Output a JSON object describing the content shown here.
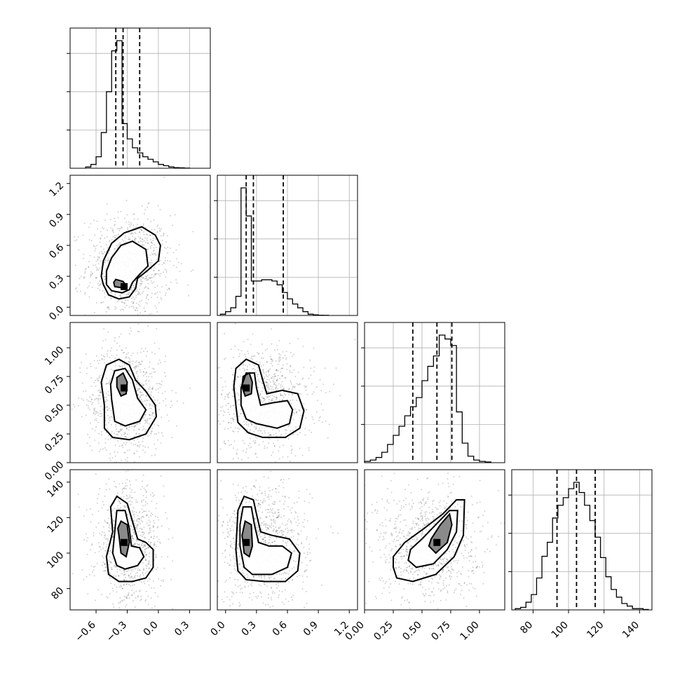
{
  "chart_data": {
    "type": "corner",
    "n_params": 4,
    "labels": [
      "",
      "",
      "",
      ""
    ],
    "ticks": [
      {
        "values": [
          -0.6,
          -0.3,
          0.0,
          0.3
        ],
        "labels": [
          "−0.6",
          "−0.3",
          "0.0",
          "0.3"
        ]
      },
      {
        "values": [
          0.0,
          0.3,
          0.6,
          0.9,
          1.2
        ],
        "labels": [
          "0.0",
          "0.3",
          "0.6",
          "0.9",
          "1.2"
        ]
      },
      {
        "values": [
          0.0,
          0.25,
          0.5,
          0.75,
          1.0
        ],
        "labels": [
          "0.00",
          "0.25",
          "0.50",
          "0.75",
          "1.00"
        ]
      },
      {
        "values": [
          80,
          100,
          120,
          140
        ],
        "labels": [
          "80",
          "100",
          "120",
          "140"
        ]
      }
    ],
    "ranges": [
      [
        -0.85,
        0.5
      ],
      [
        -0.08,
        1.28
      ],
      [
        0.0,
        1.22
      ],
      [
        68,
        147
      ]
    ],
    "marginals": [
      {
        "edges": [
          -0.7,
          -0.65,
          -0.6,
          -0.55,
          -0.5,
          -0.45,
          -0.4,
          -0.35,
          -0.3,
          -0.25,
          -0.2,
          -0.15,
          -0.1,
          -0.05,
          0.0,
          0.05,
          0.1,
          0.15,
          0.2,
          0.25,
          0.3
        ],
        "counts": [
          1,
          3,
          9,
          28,
          60,
          92,
          100,
          35,
          23,
          16,
          12,
          9,
          7,
          5,
          3,
          2,
          1,
          0.5,
          0.3,
          0.1
        ],
        "quantiles": [
          -0.41,
          -0.34,
          -0.18
        ]
      },
      {
        "edges": [
          -0.05,
          0.0,
          0.05,
          0.1,
          0.15,
          0.2,
          0.25,
          0.3,
          0.35,
          0.4,
          0.45,
          0.5,
          0.55,
          0.6,
          0.65,
          0.7,
          0.75,
          0.8,
          0.85,
          0.9,
          0.95,
          1.0
        ],
        "counts": [
          1,
          3,
          6,
          15,
          100,
          78,
          27,
          27,
          28,
          28,
          27,
          24,
          18,
          13,
          9,
          6,
          3,
          1,
          0.5,
          0.2,
          0.1
        ],
        "quantiles": [
          0.2,
          0.27,
          0.56
        ]
      },
      {
        "edges": [
          0.0,
          0.05,
          0.1,
          0.15,
          0.2,
          0.25,
          0.3,
          0.35,
          0.4,
          0.45,
          0.5,
          0.55,
          0.6,
          0.65,
          0.7,
          0.75,
          0.8,
          0.85,
          0.9,
          0.95,
          1.0,
          1.05,
          1.1
        ],
        "counts": [
          1,
          2,
          4,
          8,
          14,
          21,
          28,
          36,
          43,
          50,
          63,
          74,
          82,
          98,
          95,
          90,
          39,
          15,
          5,
          2,
          1,
          0.5
        ],
        "quantiles": [
          0.42,
          0.63,
          0.76
        ]
      },
      {
        "edges": [
          70,
          73,
          76,
          79,
          82,
          85,
          88,
          91,
          94,
          97,
          100,
          103,
          106,
          109,
          112,
          115,
          118,
          121,
          124,
          127,
          130,
          133,
          136,
          139,
          142,
          145
        ],
        "counts": [
          1,
          2,
          6,
          12,
          25,
          42,
          53,
          72,
          82,
          88,
          95,
          100,
          92,
          82,
          70,
          57,
          41,
          26,
          16,
          10,
          5,
          3,
          1,
          1,
          0.3
        ],
        "quantiles": [
          93.5,
          104.5,
          115
        ]
      }
    ],
    "pairs": [
      {
        "x": 0,
        "y": 1,
        "peak": [
          -0.33,
          0.2
        ],
        "contours": [
          [
            [
              -0.53,
              0.22
            ],
            [
              -0.48,
              0.12
            ],
            [
              -0.38,
              0.08
            ],
            [
              -0.28,
              0.1
            ],
            [
              -0.22,
              0.18
            ],
            [
              -0.2,
              0.28
            ],
            [
              -0.1,
              0.36
            ],
            [
              0.0,
              0.45
            ],
            [
              0.02,
              0.6
            ],
            [
              -0.03,
              0.7
            ],
            [
              -0.16,
              0.78
            ],
            [
              -0.33,
              0.72
            ],
            [
              -0.45,
              0.62
            ],
            [
              -0.53,
              0.45
            ],
            [
              -0.55,
              0.3
            ]
          ],
          [
            [
              -0.5,
              0.22
            ],
            [
              -0.45,
              0.16
            ],
            [
              -0.35,
              0.14
            ],
            [
              -0.28,
              0.17
            ],
            [
              -0.25,
              0.24
            ],
            [
              -0.18,
              0.32
            ],
            [
              -0.1,
              0.4
            ],
            [
              -0.12,
              0.56
            ],
            [
              -0.25,
              0.64
            ],
            [
              -0.36,
              0.6
            ],
            [
              -0.45,
              0.48
            ],
            [
              -0.5,
              0.35
            ]
          ],
          [
            [
              -0.41,
              0.27
            ],
            [
              -0.34,
              0.25
            ],
            [
              -0.31,
              0.21
            ],
            [
              -0.36,
              0.19
            ],
            [
              -0.42,
              0.2
            ],
            [
              -0.43,
              0.24
            ]
          ]
        ]
      },
      {
        "x": 0,
        "y": 2,
        "peak": [
          -0.33,
          0.65
        ],
        "contours": [
          [
            [
              -0.52,
              0.5
            ],
            [
              -0.52,
              0.3
            ],
            [
              -0.44,
              0.22
            ],
            [
              -0.28,
              0.2
            ],
            [
              -0.12,
              0.25
            ],
            [
              -0.02,
              0.4
            ],
            [
              -0.03,
              0.5
            ],
            [
              -0.12,
              0.62
            ],
            [
              -0.22,
              0.72
            ],
            [
              -0.28,
              0.85
            ],
            [
              -0.38,
              0.9
            ],
            [
              -0.5,
              0.85
            ],
            [
              -0.55,
              0.7
            ]
          ],
          [
            [
              -0.45,
              0.55
            ],
            [
              -0.42,
              0.36
            ],
            [
              -0.32,
              0.32
            ],
            [
              -0.18,
              0.36
            ],
            [
              -0.12,
              0.46
            ],
            [
              -0.2,
              0.56
            ],
            [
              -0.25,
              0.72
            ],
            [
              -0.32,
              0.82
            ],
            [
              -0.42,
              0.8
            ],
            [
              -0.46,
              0.68
            ]
          ],
          [
            [
              -0.4,
              0.66
            ],
            [
              -0.36,
              0.58
            ],
            [
              -0.31,
              0.6
            ],
            [
              -0.3,
              0.7
            ],
            [
              -0.34,
              0.78
            ],
            [
              -0.4,
              0.74
            ]
          ]
        ]
      },
      {
        "x": 1,
        "y": 2,
        "peak": [
          0.2,
          0.65
        ],
        "contours": [
          [
            [
              0.1,
              0.5
            ],
            [
              0.12,
              0.35
            ],
            [
              0.22,
              0.26
            ],
            [
              0.36,
              0.22
            ],
            [
              0.58,
              0.22
            ],
            [
              0.72,
              0.3
            ],
            [
              0.76,
              0.45
            ],
            [
              0.7,
              0.6
            ],
            [
              0.55,
              0.63
            ],
            [
              0.4,
              0.6
            ],
            [
              0.36,
              0.72
            ],
            [
              0.32,
              0.85
            ],
            [
              0.2,
              0.9
            ],
            [
              0.1,
              0.82
            ],
            [
              0.08,
              0.66
            ]
          ],
          [
            [
              0.15,
              0.5
            ],
            [
              0.2,
              0.38
            ],
            [
              0.3,
              0.34
            ],
            [
              0.5,
              0.3
            ],
            [
              0.62,
              0.34
            ],
            [
              0.65,
              0.46
            ],
            [
              0.6,
              0.54
            ],
            [
              0.45,
              0.52
            ],
            [
              0.34,
              0.5
            ],
            [
              0.3,
              0.65
            ],
            [
              0.28,
              0.78
            ],
            [
              0.2,
              0.78
            ],
            [
              0.15,
              0.65
            ]
          ],
          [
            [
              0.16,
              0.66
            ],
            [
              0.19,
              0.58
            ],
            [
              0.25,
              0.6
            ],
            [
              0.26,
              0.7
            ],
            [
              0.23,
              0.78
            ],
            [
              0.17,
              0.75
            ]
          ]
        ]
      },
      {
        "x": 0,
        "y": 3,
        "peak": [
          -0.33,
          106
        ],
        "contours": [
          [
            [
              -0.5,
              98
            ],
            [
              -0.48,
              88
            ],
            [
              -0.38,
              84
            ],
            [
              -0.25,
              84
            ],
            [
              -0.12,
              86
            ],
            [
              -0.05,
              92
            ],
            [
              -0.05,
              102
            ],
            [
              -0.12,
              106
            ],
            [
              -0.2,
              108
            ],
            [
              -0.25,
              118
            ],
            [
              -0.3,
              128
            ],
            [
              -0.4,
              132
            ],
            [
              -0.46,
              126
            ],
            [
              -0.44,
              112
            ]
          ],
          [
            [
              -0.44,
              100
            ],
            [
              -0.4,
              93
            ],
            [
              -0.32,
              91
            ],
            [
              -0.2,
              93
            ],
            [
              -0.14,
              98
            ],
            [
              -0.18,
              103
            ],
            [
              -0.26,
              104
            ],
            [
              -0.28,
              114
            ],
            [
              -0.32,
              124
            ],
            [
              -0.4,
              124
            ],
            [
              -0.42,
              112
            ]
          ],
          [
            [
              -0.38,
              110
            ],
            [
              -0.36,
              100
            ],
            [
              -0.31,
              98
            ],
            [
              -0.28,
              106
            ],
            [
              -0.3,
              116
            ],
            [
              -0.36,
              118
            ],
            [
              -0.39,
              114
            ]
          ]
        ]
      },
      {
        "x": 1,
        "y": 3,
        "peak": [
          0.2,
          106
        ],
        "contours": [
          [
            [
              0.1,
              102
            ],
            [
              0.12,
              90
            ],
            [
              0.2,
              85
            ],
            [
              0.38,
              84
            ],
            [
              0.58,
              84
            ],
            [
              0.7,
              90
            ],
            [
              0.72,
              100
            ],
            [
              0.62,
              108
            ],
            [
              0.45,
              110
            ],
            [
              0.34,
              112
            ],
            [
              0.3,
              122
            ],
            [
              0.27,
              130
            ],
            [
              0.18,
              132
            ],
            [
              0.12,
              124
            ]
          ],
          [
            [
              0.14,
              104
            ],
            [
              0.18,
              92
            ],
            [
              0.26,
              88
            ],
            [
              0.45,
              88
            ],
            [
              0.6,
              92
            ],
            [
              0.64,
              100
            ],
            [
              0.55,
              104
            ],
            [
              0.42,
              104
            ],
            [
              0.32,
              106
            ],
            [
              0.28,
              116
            ],
            [
              0.25,
              126
            ],
            [
              0.17,
              126
            ],
            [
              0.14,
              116
            ]
          ],
          [
            [
              0.16,
              110
            ],
            [
              0.18,
              100
            ],
            [
              0.23,
              98
            ],
            [
              0.26,
              104
            ],
            [
              0.25,
              116
            ],
            [
              0.19,
              118
            ]
          ]
        ]
      },
      {
        "x": 2,
        "y": 3,
        "peak": [
          0.63,
          106
        ],
        "contours": [
          [
            [
              0.25,
              92
            ],
            [
              0.28,
              86
            ],
            [
              0.42,
              84
            ],
            [
              0.62,
              88
            ],
            [
              0.78,
              98
            ],
            [
              0.86,
              110
            ],
            [
              0.87,
              130
            ],
            [
              0.8,
              130
            ],
            [
              0.68,
              122
            ],
            [
              0.52,
              114
            ],
            [
              0.35,
              106
            ],
            [
              0.25,
              98
            ]
          ],
          [
            [
              0.38,
              96
            ],
            [
              0.45,
              92
            ],
            [
              0.6,
              94
            ],
            [
              0.72,
              102
            ],
            [
              0.8,
              112
            ],
            [
              0.81,
              124
            ],
            [
              0.74,
              124
            ],
            [
              0.62,
              116
            ],
            [
              0.5,
              108
            ],
            [
              0.4,
              102
            ]
          ],
          [
            [
              0.56,
              104
            ],
            [
              0.62,
              100
            ],
            [
              0.72,
              106
            ],
            [
              0.76,
              116
            ],
            [
              0.74,
              122
            ],
            [
              0.66,
              116
            ],
            [
              0.58,
              108
            ]
          ]
        ]
      }
    ]
  }
}
